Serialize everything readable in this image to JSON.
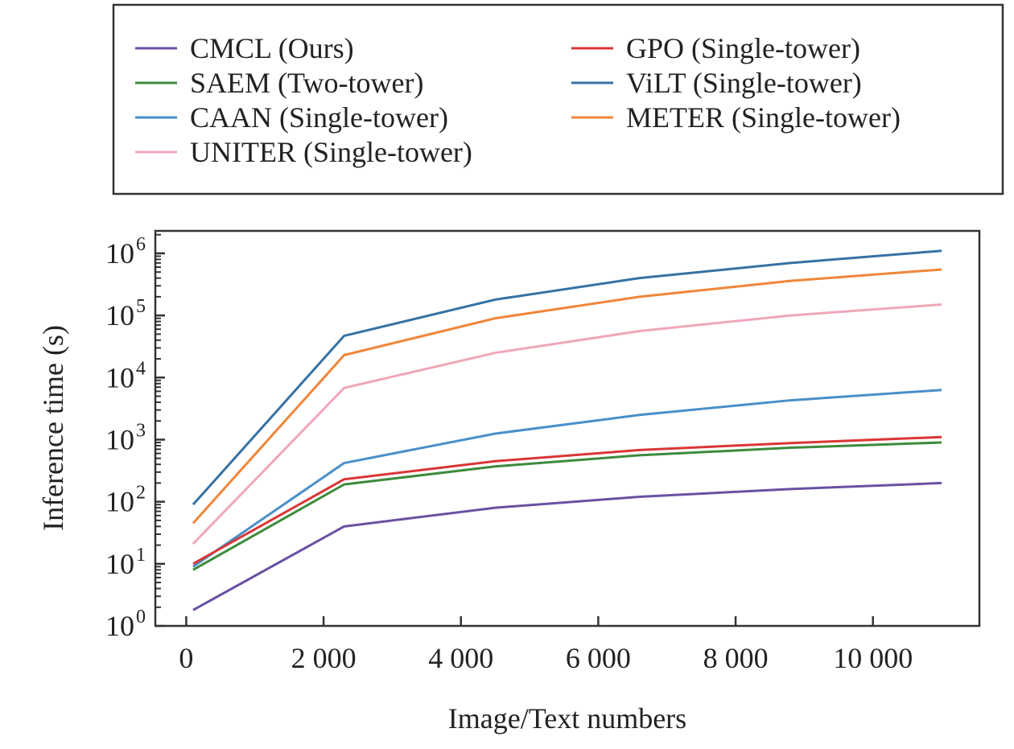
{
  "chart_data": {
    "type": "line",
    "title": "",
    "xlabel": "Image/Text numbers",
    "ylabel": "Inference time (s)",
    "x": [
      100,
      2300,
      4500,
      6600,
      8800,
      11000
    ],
    "xlim": [
      -450,
      11550
    ],
    "ylim": [
      1,
      2300000
    ],
    "yscale": "log",
    "grid": false,
    "legend_placement": "top (above plot)",
    "xticks": [
      0,
      2000,
      4000,
      6000,
      8000,
      10000
    ],
    "xtick_labels": [
      "0",
      "2 000",
      "4 000",
      "6 000",
      "8 000",
      "10 000"
    ],
    "yticks": [
      1,
      10,
      100,
      1000,
      10000,
      100000,
      1000000
    ],
    "ytick_exponents": [
      "0",
      "1",
      "2",
      "3",
      "4",
      "5",
      "6"
    ],
    "ytick_base": "10",
    "series": [
      {
        "name": "CMCL (Ours)",
        "color": "#6a51a3",
        "values": [
          1.8,
          40,
          80,
          120,
          160,
          200
        ]
      },
      {
        "name": "SAEM (Two-tower)",
        "color": "#3d8b3d",
        "values": [
          8,
          190,
          370,
          560,
          740,
          900
        ]
      },
      {
        "name": "CAAN (Single-tower)",
        "color": "#4a8fc8",
        "values": [
          9,
          420,
          1250,
          2500,
          4300,
          6300
        ]
      },
      {
        "name": "UNITER (Single-tower)",
        "color": "#f0a7b8",
        "values": [
          21,
          6800,
          25000,
          56000,
          100000,
          150000
        ]
      },
      {
        "name": "GPO (Single-tower)",
        "color": "#d93636",
        "values": [
          10,
          230,
          450,
          680,
          880,
          1100
        ]
      },
      {
        "name": "ViLT (Single-tower)",
        "color": "#3672a4",
        "values": [
          90,
          47000,
          180000,
          400000,
          700000,
          1100000
        ]
      },
      {
        "name": "METER (Single-tower)",
        "color": "#f0863a",
        "values": [
          45,
          23000,
          90000,
          200000,
          360000,
          550000
        ]
      }
    ]
  }
}
